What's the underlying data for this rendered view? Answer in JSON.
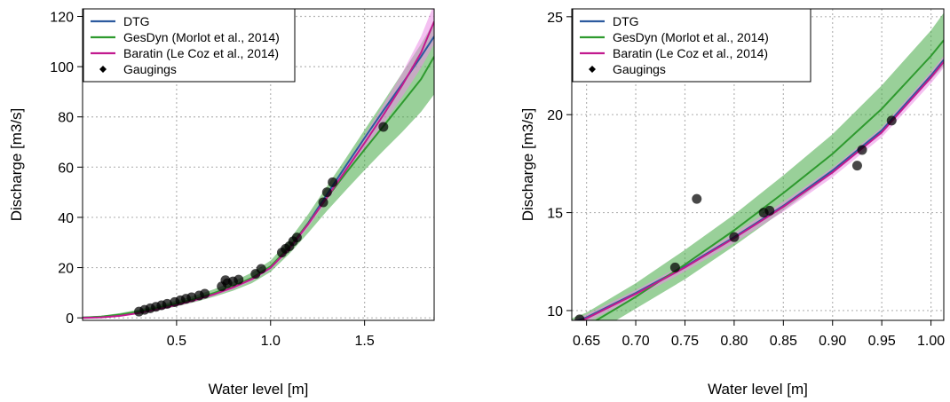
{
  "chart_data": [
    {
      "type": "line",
      "xlabel": "Water level [m]",
      "ylabel": "Discharge [m3/s]",
      "xlim": [
        0.0,
        1.87
      ],
      "ylim": [
        -1,
        123
      ],
      "xticks": [
        0.5,
        1.0,
        1.5
      ],
      "xtick_labels": [
        "0.5",
        "1.0",
        "1.5"
      ],
      "yticks": [
        0,
        20,
        40,
        60,
        80,
        100,
        120
      ],
      "ytick_labels": [
        "0",
        "20",
        "40",
        "60",
        "80",
        "100",
        "120"
      ],
      "grid": true,
      "legend": {
        "position": "top-left",
        "entries": [
          {
            "label": "DTG",
            "color": "#2c5a9e",
            "kind": "line"
          },
          {
            "label": "GesDyn (Morlot et al., 2014)",
            "color": "#2e9a2e",
            "kind": "line"
          },
          {
            "label": "Baratin (Le Coz et al., 2014)",
            "color": "#c21a8f",
            "kind": "line"
          },
          {
            "label": "Gaugings",
            "color": "#000000",
            "kind": "point"
          }
        ]
      },
      "series": [
        {
          "name": "DTG",
          "color": "#2c5a9e",
          "x": [
            0.0,
            0.1,
            0.2,
            0.3,
            0.4,
            0.5,
            0.6,
            0.7,
            0.8,
            0.9,
            1.0,
            1.1,
            1.2,
            1.3,
            1.4,
            1.5,
            1.6,
            1.7,
            1.8,
            1.87
          ],
          "y": [
            0.1,
            0.4,
            1.1,
            2.2,
            3.6,
            5.3,
            7.3,
            9.6,
            12.3,
            15.5,
            20.0,
            27.8,
            37.8,
            49.2,
            60.5,
            71.6,
            82.5,
            93.2,
            104.0,
            112.0
          ]
        },
        {
          "name": "GesDyn (Morlot et al., 2014)",
          "color": "#2e9a2e",
          "x": [
            0.0,
            0.1,
            0.2,
            0.3,
            0.4,
            0.5,
            0.6,
            0.7,
            0.8,
            0.9,
            1.0,
            1.1,
            1.2,
            1.3,
            1.4,
            1.5,
            1.6,
            1.7,
            1.8,
            1.87
          ],
          "y": [
            0.1,
            0.5,
            1.3,
            2.5,
            4.0,
            5.7,
            7.6,
            9.9,
            12.6,
            15.9,
            20.5,
            28.2,
            37.6,
            47.8,
            57.6,
            67.0,
            76.3,
            85.6,
            95.0,
            104.0
          ],
          "band_low": [
            0.0,
            0.3,
            0.8,
            1.8,
            3.0,
            4.5,
            6.3,
            8.4,
            10.8,
            13.8,
            18.3,
            25.5,
            33.8,
            42.6,
            50.8,
            58.8,
            66.5,
            74.0,
            82.0,
            89.0
          ],
          "band_high": [
            0.3,
            0.8,
            1.9,
            3.3,
            5.0,
            6.9,
            8.9,
            11.4,
            14.4,
            18.0,
            22.8,
            31.0,
            41.2,
            52.4,
            63.5,
            74.8,
            86.0,
            97.5,
            109.0,
            118.0
          ]
        },
        {
          "name": "Baratin (Le Coz et al., 2014)",
          "color": "#c21a8f",
          "x": [
            0.0,
            0.1,
            0.2,
            0.3,
            0.4,
            0.5,
            0.6,
            0.7,
            0.8,
            0.9,
            1.0,
            1.1,
            1.2,
            1.3,
            1.4,
            1.5,
            1.6,
            1.7,
            1.8,
            1.87
          ],
          "y": [
            0.0,
            0.2,
            0.8,
            1.9,
            3.4,
            5.1,
            7.1,
            9.4,
            12.1,
            15.4,
            20.0,
            27.6,
            37.3,
            48.0,
            58.8,
            69.6,
            80.8,
            92.6,
            105.5,
            118.0
          ],
          "band_low": [
            0.0,
            0.1,
            0.6,
            1.6,
            3.0,
            4.6,
            6.5,
            8.8,
            11.4,
            14.6,
            19.2,
            26.6,
            36.0,
            46.5,
            56.8,
            67.0,
            77.2,
            88.0,
            99.5,
            109.0
          ],
          "band_high": [
            0.1,
            0.4,
            1.1,
            2.3,
            3.8,
            5.6,
            7.7,
            10.1,
            12.9,
            16.3,
            20.9,
            28.6,
            38.6,
            49.6,
            61.0,
            72.5,
            84.8,
            97.5,
            112.0,
            125.0
          ]
        },
        {
          "name": "Gaugings",
          "color": "#000000",
          "type": "scatter",
          "x": [
            0.3,
            0.33,
            0.36,
            0.39,
            0.42,
            0.45,
            0.49,
            0.52,
            0.55,
            0.58,
            0.62,
            0.65,
            0.74,
            0.76,
            0.77,
            0.8,
            0.83,
            0.92,
            0.95,
            1.06,
            1.08,
            1.1,
            1.12,
            1.14,
            1.28,
            1.3,
            1.33,
            1.6
          ],
          "y": [
            2.5,
            3.2,
            3.8,
            4.4,
            5.0,
            5.6,
            6.3,
            7.0,
            7.6,
            8.2,
            8.9,
            9.6,
            12.5,
            15.0,
            13.8,
            14.5,
            15.2,
            17.5,
            19.5,
            26.0,
            27.5,
            28.5,
            30.5,
            32.0,
            46.0,
            50.0,
            54.0,
            76.0
          ]
        }
      ]
    },
    {
      "type": "line",
      "xlabel": "Water level [m]",
      "ylabel": "Discharge [m3/s]",
      "xlim": [
        0.635,
        1.013
      ],
      "ylim": [
        9.5,
        25.4
      ],
      "xticks": [
        0.65,
        0.7,
        0.75,
        0.8,
        0.85,
        0.9,
        0.95,
        1.0
      ],
      "xtick_labels": [
        "0.65",
        "0.70",
        "0.75",
        "0.80",
        "0.85",
        "0.90",
        "0.95",
        "1.00"
      ],
      "yticks": [
        10,
        15,
        20,
        25
      ],
      "ytick_labels": [
        "10",
        "15",
        "20",
        "25"
      ],
      "grid": true,
      "legend": {
        "position": "top-left",
        "entries": [
          {
            "label": "DTG",
            "color": "#2c5a9e",
            "kind": "line"
          },
          {
            "label": "GesDyn (Morlot et al., 2014)",
            "color": "#2e9a2e",
            "kind": "line"
          },
          {
            "label": "Baratin (Le Coz et al., 2014)",
            "color": "#c21a8f",
            "kind": "line"
          },
          {
            "label": "Gaugings",
            "color": "#000000",
            "kind": "point"
          }
        ]
      },
      "series": [
        {
          "name": "DTG",
          "color": "#2c5a9e",
          "x": [
            0.635,
            0.65,
            0.7,
            0.75,
            0.8,
            0.85,
            0.9,
            0.95,
            1.0,
            1.013
          ],
          "y": [
            9.4,
            9.65,
            10.9,
            12.25,
            13.75,
            15.35,
            17.15,
            19.2,
            22.0,
            22.8
          ]
        },
        {
          "name": "GesDyn (Morlot et al., 2014)",
          "color": "#2e9a2e",
          "x": [
            0.635,
            0.65,
            0.7,
            0.75,
            0.8,
            0.85,
            0.9,
            0.95,
            1.0,
            1.013
          ],
          "y": [
            8.9,
            9.2,
            10.7,
            12.35,
            14.1,
            16.0,
            18.0,
            20.3,
            23.0,
            23.8
          ],
          "band_low": [
            8.3,
            8.6,
            10.1,
            11.6,
            13.3,
            15.1,
            17.0,
            19.2,
            21.8,
            22.5
          ],
          "band_high": [
            9.6,
            9.9,
            11.4,
            13.1,
            14.9,
            16.9,
            19.0,
            21.5,
            24.3,
            25.2
          ]
        },
        {
          "name": "Baratin (Le Coz et al., 2014)",
          "color": "#c21a8f",
          "x": [
            0.635,
            0.65,
            0.7,
            0.75,
            0.8,
            0.85,
            0.9,
            0.95,
            1.0,
            1.013
          ],
          "y": [
            9.3,
            9.6,
            10.85,
            12.2,
            13.7,
            15.3,
            17.05,
            19.1,
            21.9,
            22.7
          ],
          "band_low": [
            9.1,
            9.4,
            10.65,
            12.0,
            13.45,
            15.05,
            16.8,
            18.85,
            21.6,
            22.4
          ],
          "band_high": [
            9.5,
            9.8,
            11.05,
            12.4,
            13.95,
            15.55,
            17.3,
            19.35,
            22.2,
            23.0
          ]
        },
        {
          "name": "Gaugings",
          "color": "#000000",
          "type": "scatter",
          "x": [
            0.643,
            0.74,
            0.762,
            0.8,
            0.83,
            0.836,
            0.925,
            0.93,
            0.96
          ],
          "y": [
            9.55,
            12.2,
            15.7,
            13.75,
            15.0,
            15.1,
            17.4,
            18.2,
            19.7
          ]
        }
      ]
    }
  ]
}
